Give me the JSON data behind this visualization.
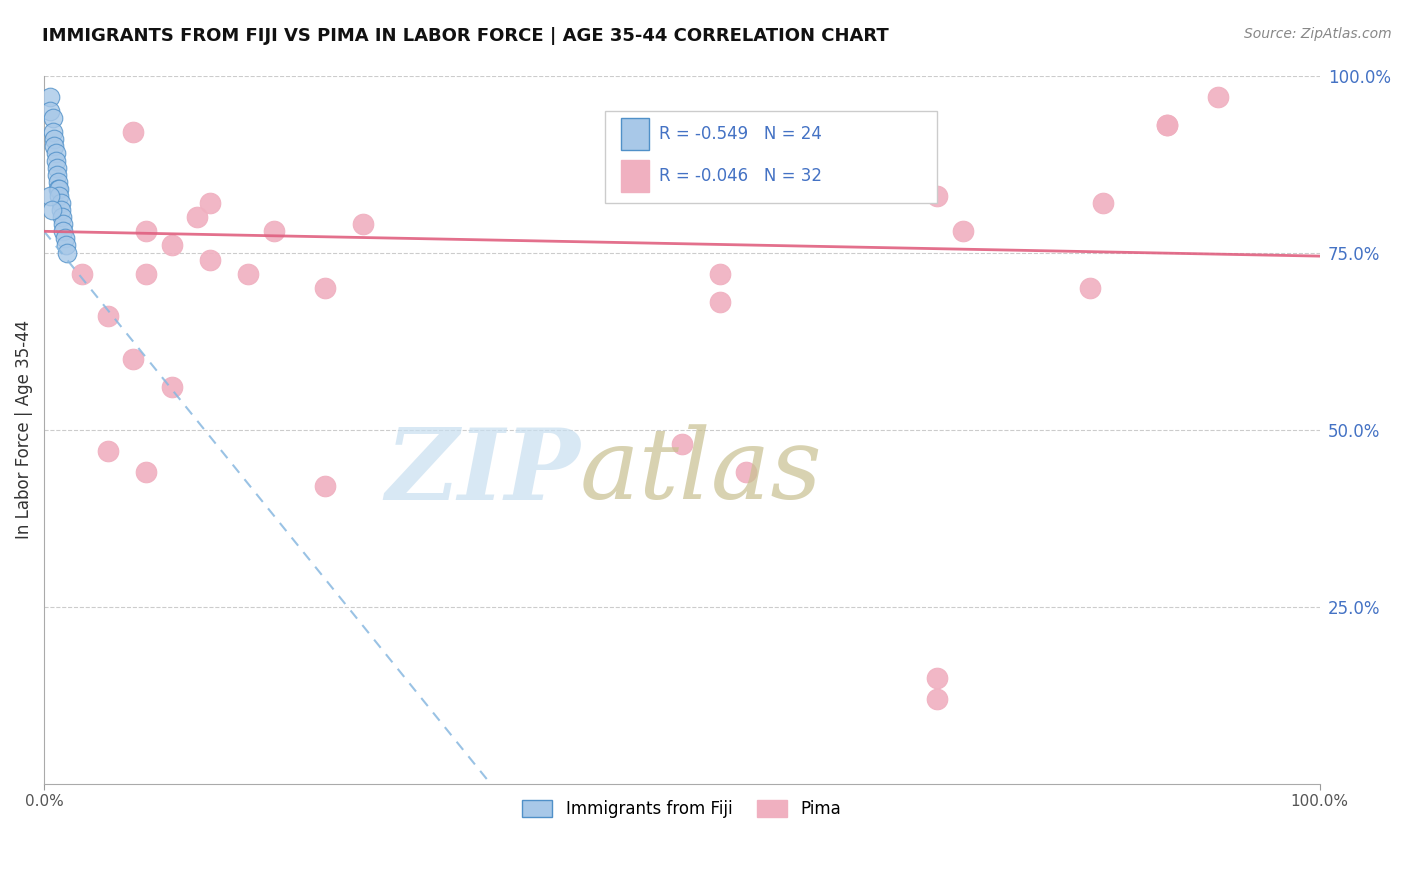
{
  "title": "IMMIGRANTS FROM FIJI VS PIMA IN LABOR FORCE | AGE 35-44 CORRELATION CHART",
  "source": "Source: ZipAtlas.com",
  "ylabel": "In Labor Force | Age 35-44",
  "legend_label1": "Immigrants from Fiji",
  "legend_label2": "Pima",
  "r1": "-0.549",
  "n1": "24",
  "r2": "-0.046",
  "n2": "32",
  "xlim": [
    0,
    1
  ],
  "ylim": [
    0,
    1
  ],
  "blue_color": "#a8c8e8",
  "blue_edge_color": "#5090c8",
  "pink_color": "#f0b0c0",
  "pink_edge_color": "#f0b0c0",
  "blue_line_color": "#88b8e0",
  "pink_line_color": "#e06080",
  "grid_color": "#cccccc",
  "title_color": "#111111",
  "axis_label_color": "#4472c4",
  "watermark_zip_color": "#c8dff0",
  "watermark_atlas_color": "#c8c090",
  "blue_scatter_x": [
    0.005,
    0.005,
    0.007,
    0.007,
    0.008,
    0.008,
    0.009,
    0.009,
    0.01,
    0.01,
    0.011,
    0.011,
    0.012,
    0.012,
    0.013,
    0.013,
    0.014,
    0.015,
    0.015,
    0.016,
    0.017,
    0.018,
    0.005,
    0.006
  ],
  "blue_scatter_y": [
    0.97,
    0.95,
    0.94,
    0.92,
    0.91,
    0.9,
    0.89,
    0.88,
    0.87,
    0.86,
    0.85,
    0.84,
    0.84,
    0.83,
    0.82,
    0.81,
    0.8,
    0.79,
    0.78,
    0.77,
    0.76,
    0.75,
    0.83,
    0.81
  ],
  "pink_scatter_x": [
    0.03,
    0.07,
    0.13,
    0.18,
    0.08,
    0.05,
    0.12,
    0.08,
    0.1,
    0.13,
    0.16,
    0.22,
    0.07,
    0.1,
    0.05,
    0.08,
    0.22,
    0.25,
    0.53,
    0.53,
    0.6,
    0.7,
    0.72,
    0.82,
    0.83,
    0.92,
    0.88,
    0.88,
    0.5,
    0.55,
    0.7,
    0.7
  ],
  "pink_scatter_y": [
    0.72,
    0.92,
    0.82,
    0.78,
    0.72,
    0.66,
    0.8,
    0.78,
    0.76,
    0.74,
    0.72,
    0.7,
    0.6,
    0.56,
    0.47,
    0.44,
    0.42,
    0.79,
    0.72,
    0.68,
    0.85,
    0.83,
    0.78,
    0.7,
    0.82,
    0.97,
    0.93,
    0.93,
    0.48,
    0.44,
    0.15,
    0.12
  ],
  "blue_trendline_x": [
    0.0,
    0.35
  ],
  "blue_trendline_y": [
    0.78,
    0.0
  ],
  "pink_trendline_x": [
    0.0,
    1.0
  ],
  "pink_trendline_y": [
    0.78,
    0.745
  ]
}
